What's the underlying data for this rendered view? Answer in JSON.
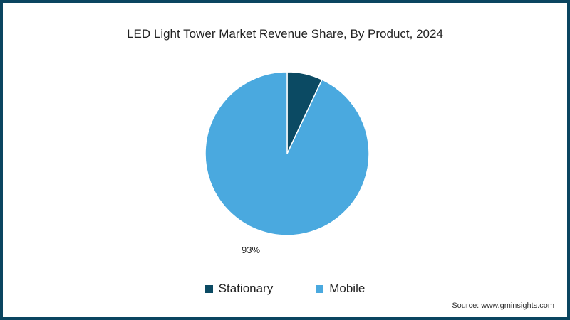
{
  "chart_data": {
    "type": "pie",
    "title": "LED Light Tower Market Revenue Share, By Product, 2024",
    "categories": [
      "Stationary",
      "Mobile"
    ],
    "values": [
      7,
      93
    ],
    "colors": [
      "#0b4a63",
      "#4aa9df"
    ],
    "data_labels": [
      {
        "category": "Mobile",
        "label": "93%"
      }
    ],
    "legend_position": "bottom",
    "start_angle_deg": 0,
    "direction": "clockwise"
  },
  "legend": {
    "items": [
      {
        "label": "Stationary",
        "color": "#0b4a63"
      },
      {
        "label": "Mobile",
        "color": "#4aa9df"
      }
    ]
  },
  "labels": {
    "mobile_pct": "93%"
  },
  "footer": {
    "source": "Source: www.gminsights.com"
  },
  "colors": {
    "frame": "#0b4560",
    "background": "#ffffff"
  }
}
